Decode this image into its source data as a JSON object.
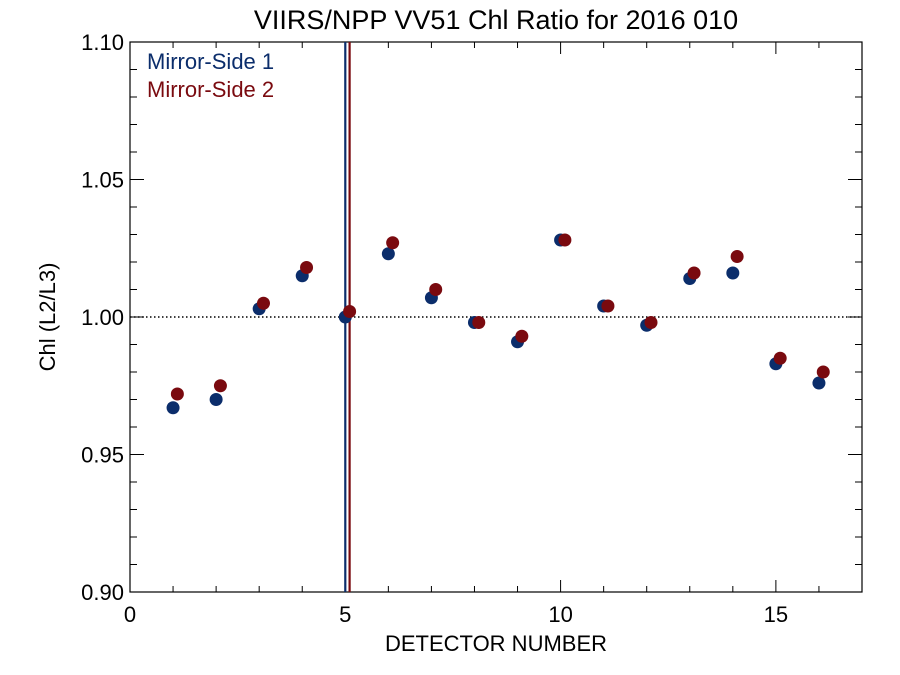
{
  "chart_data": {
    "type": "scatter",
    "title": "VIIRS/NPP VV51 Chl Ratio for 2016 010",
    "xlabel": "DETECTOR NUMBER",
    "ylabel": "Chl (L2/L3)",
    "xlim": [
      0,
      17
    ],
    "ylim": [
      0.9,
      1.1
    ],
    "x_ticks": [
      0,
      5,
      10,
      15
    ],
    "x_tick_labels": [
      "0",
      "5",
      "10",
      "15"
    ],
    "y_ticks": [
      0.9,
      0.95,
      1.0,
      1.05,
      1.1
    ],
    "y_tick_labels": [
      "0.90",
      "0.95",
      "1.00",
      "1.05",
      "1.10"
    ],
    "reference_line": {
      "y": 1.0,
      "style": "dotted"
    },
    "vertical_lines": [
      {
        "x": 5.0,
        "series": "Mirror-Side 1"
      },
      {
        "x": 5.1,
        "series": "Mirror-Side 2"
      }
    ],
    "legend_position": "top-left",
    "grid": false,
    "series": [
      {
        "name": "Mirror-Side 1",
        "color": "#0b2d6b",
        "x": [
          1,
          2,
          3,
          4,
          5,
          6,
          7,
          8,
          9,
          10,
          11,
          12,
          13,
          14,
          15,
          16
        ],
        "y": [
          0.967,
          0.97,
          1.003,
          1.015,
          1.0,
          1.023,
          1.007,
          0.998,
          0.991,
          1.028,
          1.004,
          0.997,
          1.014,
          1.016,
          0.983,
          0.976
        ]
      },
      {
        "name": "Mirror-Side 2",
        "color": "#7a0a0f",
        "x": [
          1.1,
          2.1,
          3.1,
          4.1,
          5.1,
          6.1,
          7.1,
          8.1,
          9.1,
          10.1,
          11.1,
          12.1,
          13.1,
          14.1,
          15.1,
          16.1
        ],
        "y": [
          0.972,
          0.975,
          1.005,
          1.018,
          1.002,
          1.027,
          1.01,
          0.998,
          0.993,
          1.028,
          1.004,
          0.998,
          1.016,
          1.022,
          0.985,
          0.98
        ]
      }
    ]
  }
}
